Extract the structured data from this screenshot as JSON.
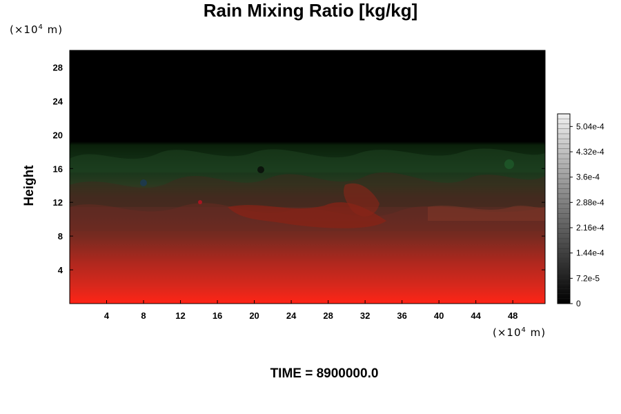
{
  "chart_data": {
    "type": "heatmap",
    "title": "Rain Mixing Ratio [kg/kg]",
    "ylabel": "Height",
    "xlabel": "",
    "x_unit_prefix": "(×10",
    "x_unit_exp": "4",
    "x_unit_suffix": " m)",
    "y_unit_prefix": "(×10",
    "y_unit_exp": "4",
    "y_unit_suffix": " m)",
    "xlim": [
      0,
      51.5
    ],
    "ylim": [
      0,
      30
    ],
    "x_ticks": [
      4,
      8,
      12,
      16,
      20,
      24,
      28,
      32,
      36,
      40,
      44,
      48
    ],
    "x_tick_labels": [
      "4",
      "8",
      "12",
      "16",
      "20",
      "24",
      "28",
      "32",
      "36",
      "40",
      "44",
      "48"
    ],
    "y_ticks": [
      4,
      8,
      12,
      16,
      20,
      24,
      28
    ],
    "y_tick_labels": [
      "4",
      "8",
      "12",
      "16",
      "20",
      "24",
      "28"
    ],
    "colorbar": {
      "min": 0,
      "max": 0.00054,
      "ticks": [
        0,
        7.2e-05,
        0.000144,
        0.000216,
        0.000288,
        0.00036,
        0.000432,
        0.000504
      ],
      "tick_labels": [
        "0",
        "7.2e-5",
        "1.44e-4",
        "2.16e-4",
        "2.88e-4",
        "3.6e-4",
        "4.32e-4",
        "5.04e-4"
      ]
    },
    "field_layers": [
      {
        "height_range": [
          18.5,
          30
        ],
        "color": "#000000"
      },
      {
        "height_range": [
          14.5,
          18.5
        ],
        "color": "#0e2a0e"
      },
      {
        "height_range": [
          12,
          14.5
        ],
        "color": "#3a2a1c"
      },
      {
        "height_range": [
          8,
          12
        ],
        "color": "#5a2a22"
      },
      {
        "height_range": [
          4,
          8
        ],
        "color": "#b0281e"
      },
      {
        "height_range": [
          0,
          4
        ],
        "color": "#f0281a"
      }
    ]
  },
  "footer_text": "TIME = 8900000.0"
}
